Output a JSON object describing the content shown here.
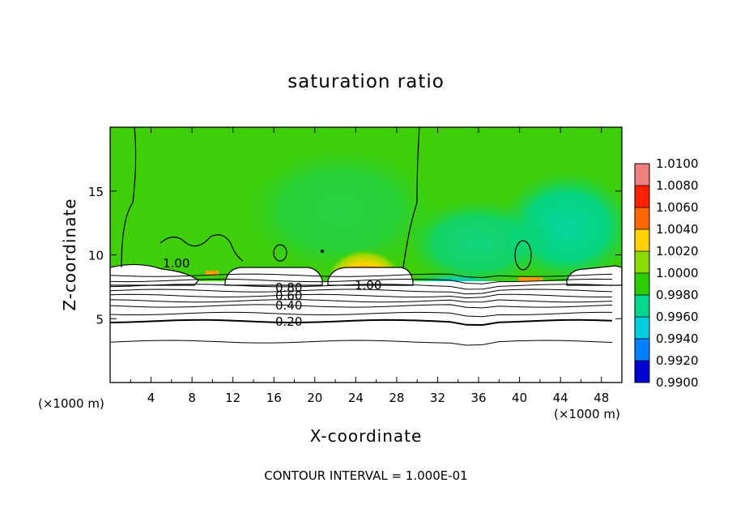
{
  "chart_data": {
    "type": "heatmap",
    "title": "saturation ratio",
    "xlabel": "X-coordinate",
    "ylabel": "Z-coordinate",
    "x_unit": "(×1000 m)",
    "x_unit_right": "(×1000 m)",
    "xlim": [
      0,
      50
    ],
    "ylim": [
      0,
      20
    ],
    "x_ticks": [
      "4",
      "8",
      "12",
      "16",
      "20",
      "24",
      "28",
      "32",
      "36",
      "40",
      "44",
      "48"
    ],
    "y_ticks": [
      "5",
      "10",
      "15"
    ],
    "colorbar": {
      "levels": [
        "1.0100",
        "1.0080",
        "1.0060",
        "1.0040",
        "1.0020",
        "1.0000",
        "0.9980",
        "0.9960",
        "0.9940",
        "0.9920",
        "0.9900"
      ],
      "colors": [
        "#f08080",
        "#ff2000",
        "#ff6600",
        "#ffd200",
        "#8cdc00",
        "#2ccd00",
        "#00d890",
        "#00cfe0",
        "#0080ff",
        "#0000d0",
        "#6a00b0"
      ]
    },
    "contour_labels": [
      "1.00",
      "1.00",
      "0.80",
      "0.60",
      "0.40",
      "0.20"
    ],
    "contour_interval_text": "CONTOUR INTERVAL = 1.000E-01",
    "grid": false
  }
}
